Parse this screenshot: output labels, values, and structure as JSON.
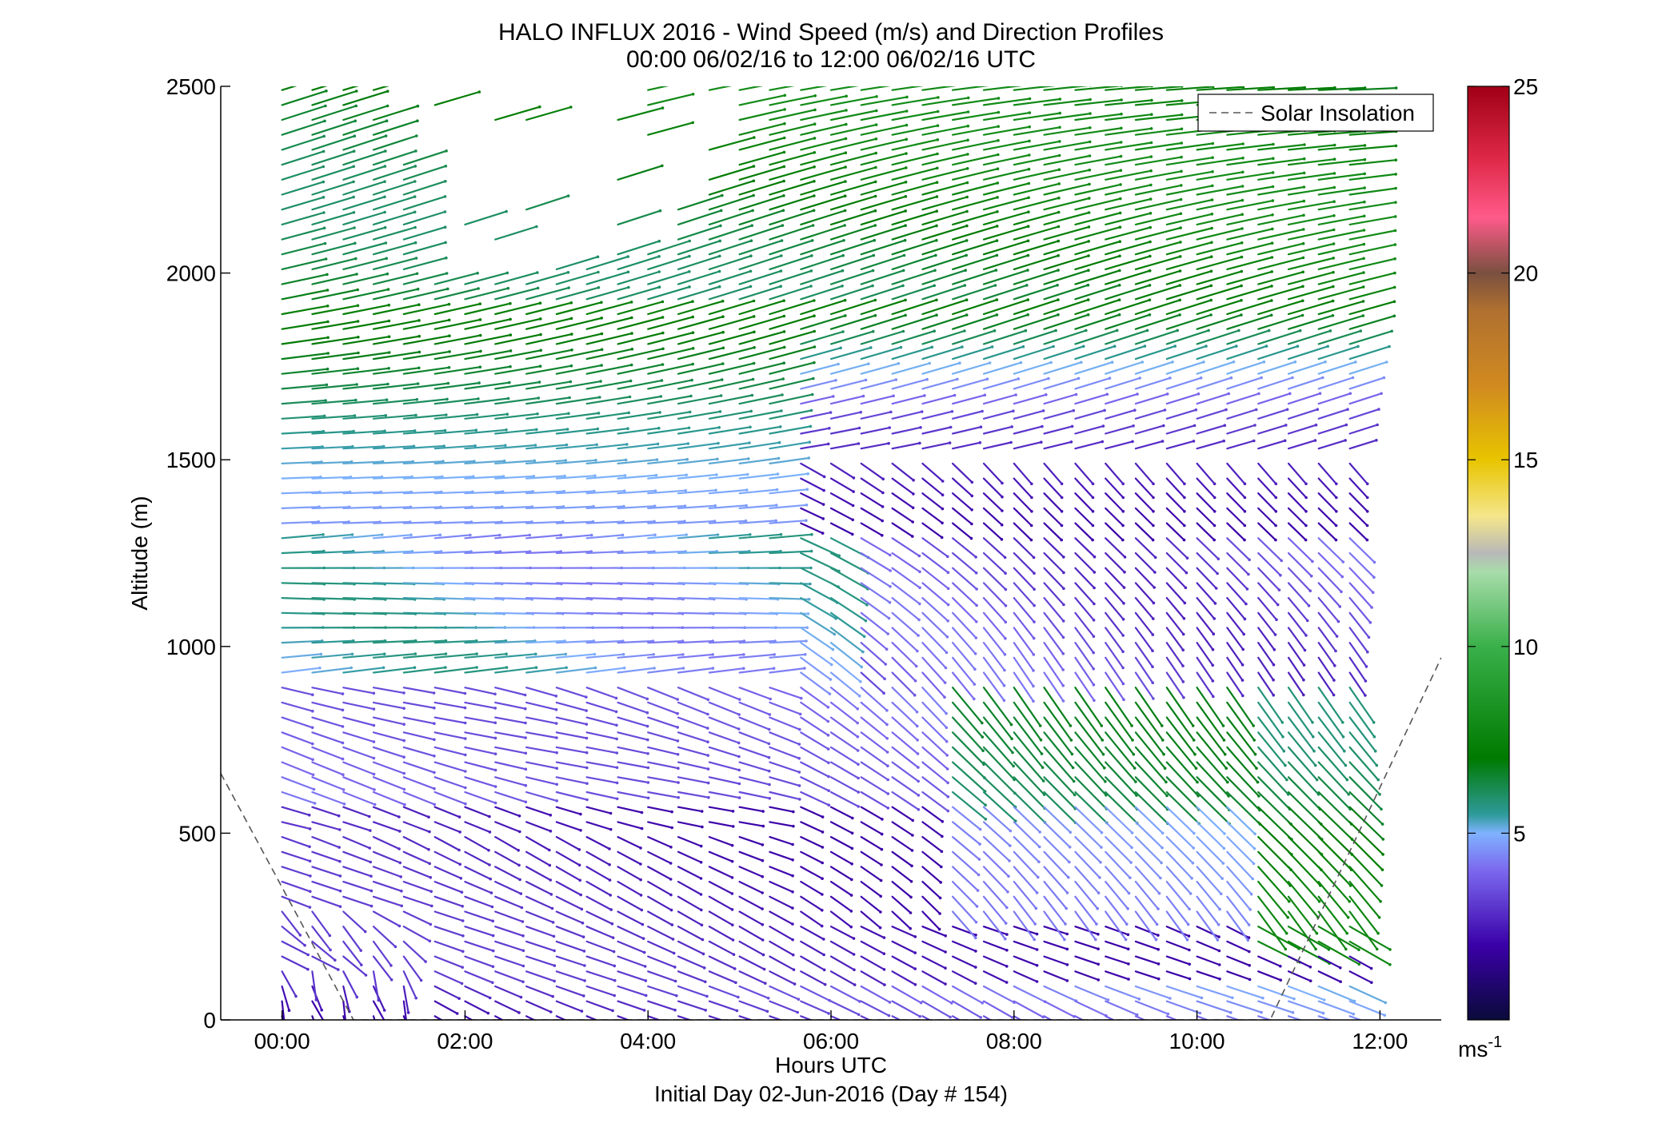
{
  "chart_data": {
    "type": "vector-field",
    "title": "HALO INFLUX 2016 - Wind Speed (m/s) and Direction Profiles",
    "subtitle": "00:00 06/02/16 to 12:00 06/02/16  UTC",
    "xlabel": "Hours UTC",
    "xlabel2": "Initial Day 02-Jun-2016 (Day # 154)",
    "ylabel": "Altitude (m)",
    "xlim": [
      -0.67,
      12.67
    ],
    "ylim": [
      0,
      2500
    ],
    "x_ticks": [
      0,
      2,
      4,
      6,
      8,
      10,
      12
    ],
    "x_tick_labels": [
      "00:00",
      "02:00",
      "04:00",
      "06:00",
      "08:00",
      "10:00",
      "12:00"
    ],
    "y_ticks": [
      0,
      500,
      1000,
      1500,
      2000,
      2500
    ],
    "y_tick_labels": [
      "0",
      "500",
      "1000",
      "1500",
      "2000",
      "2500"
    ],
    "colorbar": {
      "range": [
        0,
        25
      ],
      "ticks": [
        5,
        10,
        15,
        20,
        25
      ],
      "tick_labels": [
        "5",
        "10",
        "15",
        "20",
        "25"
      ],
      "unit_base": "ms",
      "unit_exp": "-1",
      "stops": [
        {
          "v": 0,
          "color": "#0a0a3a"
        },
        {
          "v": 2,
          "color": "#3a00a8"
        },
        {
          "v": 4,
          "color": "#7b68ee"
        },
        {
          "v": 5,
          "color": "#7fb2ff"
        },
        {
          "v": 5.5,
          "color": "#2e9a9a"
        },
        {
          "v": 7,
          "color": "#007a00"
        },
        {
          "v": 10,
          "color": "#3ab04a"
        },
        {
          "v": 12,
          "color": "#a8dcaa"
        },
        {
          "v": 12.5,
          "color": "#b8b8b8"
        },
        {
          "v": 13.5,
          "color": "#f5e68a"
        },
        {
          "v": 15,
          "color": "#e8c400"
        },
        {
          "v": 17,
          "color": "#d08a20"
        },
        {
          "v": 19,
          "color": "#b07030"
        },
        {
          "v": 20,
          "color": "#7a5040"
        },
        {
          "v": 21.5,
          "color": "#ff5a8a"
        },
        {
          "v": 23,
          "color": "#e02a4a"
        },
        {
          "v": 25,
          "color": "#a00015"
        }
      ]
    },
    "legend": {
      "entries": [
        "Solar Insolation"
      ],
      "position": "top-right"
    },
    "solar_insolation": [
      {
        "x": -0.67,
        "y": 660
      },
      {
        "x": 0.78,
        "y": 0
      },
      {
        "x": 10.8,
        "y": 0
      },
      {
        "x": 12.67,
        "y": 970
      }
    ],
    "vectors": {
      "times": [
        0.0,
        0.33,
        0.67,
        1.0,
        1.33,
        1.67,
        2.0,
        2.33,
        2.67,
        3.0,
        3.33,
        3.67,
        4.0,
        4.33,
        4.67,
        5.0,
        5.33,
        5.67,
        6.0,
        6.33,
        6.67,
        7.0,
        7.33,
        7.67,
        8.0,
        8.33,
        8.67,
        9.0,
        9.33,
        9.67,
        10.0,
        10.33,
        10.67,
        11.0,
        11.33,
        11.67
      ],
      "altitude_step_m": 40,
      "altitude_top_m": 2500,
      "description": "Wind barb sticks; length scales with speed, angle shows direction, color shows speed (m/s)"
    }
  }
}
